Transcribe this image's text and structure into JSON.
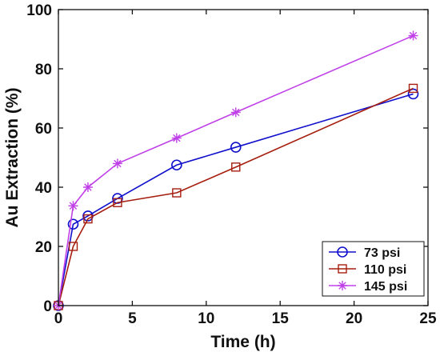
{
  "chart_data": {
    "type": "line",
    "title": "",
    "xlabel": "Time (h)",
    "ylabel": "Au Extraction (%)",
    "xlim": [
      0,
      25
    ],
    "ylim": [
      0,
      100
    ],
    "xticks": [
      0,
      5,
      10,
      15,
      20,
      25
    ],
    "yticks": [
      0,
      20,
      40,
      60,
      80,
      100
    ],
    "grid": false,
    "legend_position": "bottom-right",
    "series": [
      {
        "name": "73 psi",
        "marker": "circle",
        "color": "#1010cc",
        "x": [
          0,
          1,
          2,
          4,
          8,
          12,
          24
        ],
        "y": [
          0,
          27.5,
          30.3,
          36.2,
          47.5,
          53.5,
          71.5
        ]
      },
      {
        "name": "110 psi",
        "marker": "square",
        "color": "#a51e0f",
        "x": [
          0,
          1,
          2,
          4,
          8,
          12,
          24
        ],
        "y": [
          0,
          20,
          29.3,
          34.8,
          38.1,
          46.8,
          73.4
        ]
      },
      {
        "name": "145 psi",
        "marker": "asterisk",
        "color": "#c040e8",
        "x": [
          0,
          1,
          2,
          4,
          8,
          12,
          24
        ],
        "y": [
          0,
          33.7,
          40,
          48,
          56.6,
          65.3,
          91.2
        ]
      }
    ]
  }
}
